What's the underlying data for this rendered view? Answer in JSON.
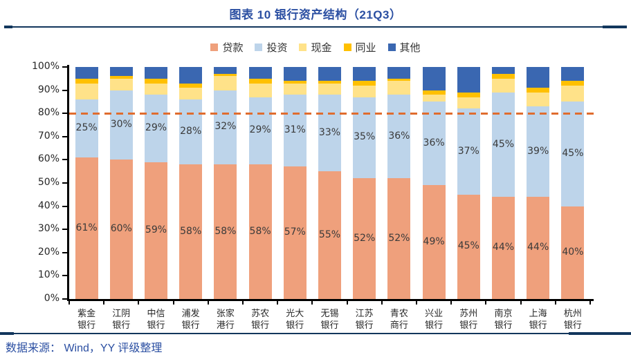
{
  "header": {
    "title": "图表 10 银行资产结构（21Q3）"
  },
  "source": {
    "text": "数据来源： Wind，YY 评级整理"
  },
  "colors": {
    "title_blue": "#2B4FA2",
    "rule_navy": "#12365C",
    "loans": "#EFA07C",
    "investment": "#BDD4EA",
    "cash": "#FFE289",
    "interbank": "#FFC000",
    "other": "#3A67B1",
    "refline_orange": "#E06C2E",
    "axis_black": "#000000"
  },
  "chart_data": {
    "type": "bar",
    "stacked": true,
    "grid": false,
    "legend_position": "top",
    "categories": [
      "紫金银行",
      "江阴银行",
      "中信银行",
      "浦发银行",
      "张家港行",
      "苏农银行",
      "光大银行",
      "无锡银行",
      "江苏银行",
      "青农商行",
      "兴业银行",
      "苏州银行",
      "南京银行",
      "上海银行",
      "杭州银行"
    ],
    "series": [
      {
        "name": "贷款",
        "color": "#EFA07C",
        "show_labels": true,
        "values": [
          61,
          60,
          59,
          58,
          58,
          58,
          57,
          55,
          52,
          52,
          49,
          45,
          44,
          44,
          40
        ]
      },
      {
        "name": "投资",
        "color": "#BDD4EA",
        "show_labels": true,
        "values": [
          25,
          30,
          29,
          28,
          32,
          29,
          31,
          33,
          35,
          36,
          36,
          37,
          45,
          39,
          45
        ]
      },
      {
        "name": "现金",
        "color": "#FFE289",
        "show_labels": false,
        "values": [
          7,
          5,
          5,
          5,
          6,
          6,
          5,
          5,
          5,
          6,
          3,
          5,
          6,
          6,
          7
        ]
      },
      {
        "name": "同业",
        "color": "#FFC000",
        "show_labels": false,
        "values": [
          2,
          1,
          2,
          2,
          1,
          2,
          1,
          1,
          2,
          1,
          2,
          2,
          2,
          2,
          2
        ]
      },
      {
        "name": "其他",
        "color": "#3A67B1",
        "show_labels": false,
        "values": [
          5,
          4,
          5,
          7,
          3,
          5,
          6,
          6,
          6,
          5,
          10,
          11,
          3,
          9,
          6
        ]
      }
    ],
    "ylim": [
      0,
      100
    ],
    "yticks": [
      "0%",
      "10%",
      "20%",
      "30%",
      "40%",
      "50%",
      "60%",
      "70%",
      "80%",
      "90%",
      "100%"
    ],
    "refline": {
      "value": 80,
      "color": "#E06C2E",
      "style": "dashed"
    }
  }
}
